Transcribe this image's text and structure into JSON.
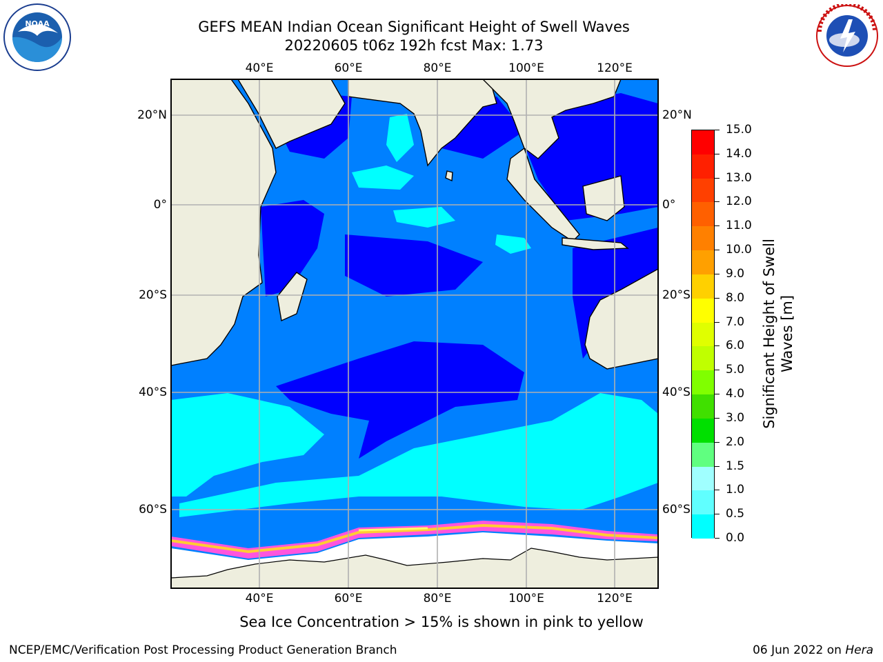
{
  "header": {
    "title": "GEFS MEAN Indian Ocean Significant Height of Swell Waves",
    "subtitle": "20220605 t06z 192h fcst   Max: 1.73"
  },
  "logos": {
    "left": "NOAA",
    "right": "NATIONAL WEATHER SERVICE"
  },
  "map": {
    "lon_ticks_top": [
      "40°E",
      "60°E",
      "80°E",
      "100°E",
      "120°E"
    ],
    "lon_ticks_bottom": [
      "40°E",
      "60°E",
      "80°E",
      "100°E",
      "120°E"
    ],
    "lat_ticks_left": [
      "20°N",
      "0°",
      "20°S",
      "40°S",
      "60°S"
    ],
    "lat_ticks_right": [
      "20°N",
      "0°",
      "20°S",
      "40°S",
      "60°S"
    ],
    "land_color": "#eeeede",
    "ocean_low_color": "#0000ff",
    "ocean_mid_color": "#0080ff",
    "ocean_high_color": "#00ffff",
    "grid_color": "#b0b0b0"
  },
  "colorbar": {
    "title_line1": "Significant Height of Swell",
    "title_line2": "Waves [m]",
    "labels": [
      "15.0",
      "14.0",
      "13.0",
      "12.0",
      "11.0",
      "10.0",
      "9.0",
      "8.0",
      "7.0",
      "6.0",
      "5.0",
      "4.0",
      "3.0",
      "2.0",
      "1.5",
      "1.0",
      "0.5",
      "0.0"
    ],
    "colors": [
      "#ff0000",
      "#ff2000",
      "#ff4000",
      "#ff6000",
      "#ff8000",
      "#ffa000",
      "#ffd000",
      "#ffff00",
      "#e0ff00",
      "#c0ff00",
      "#80ff00",
      "#40e000",
      "#00e000",
      "#60ff80",
      "#a0ffff",
      "#60ffff",
      "#00ffff",
      "#0080ff",
      "#0000ff"
    ]
  },
  "notes": {
    "ice": "Sea Ice Concentration > 15% is shown in pink to yellow"
  },
  "footer": {
    "left": "NCEP/EMC/Verification Post Processing Product Generation Branch",
    "right_date": "06 Jun 2022 on ",
    "right_host": "Hera"
  }
}
